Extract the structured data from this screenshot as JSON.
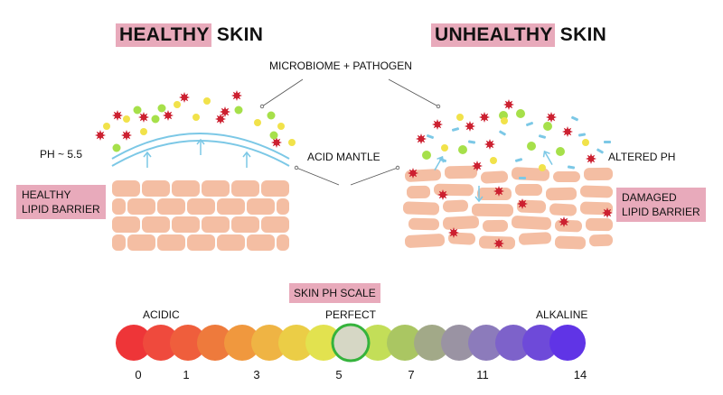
{
  "titles": {
    "healthy_highlight": "HEALTHY",
    "healthy_rest": " SKIN",
    "unhealthy_highlight": "UNHEALTHY",
    "unhealthy_rest": " SKIN"
  },
  "labels": {
    "microbiome": "MICROBIOME + PATHOGEN",
    "ph_left": "PH ~ 5.5",
    "acid_mantle": "ACID MANTLE",
    "altered_ph": "ALTERED PH",
    "healthy_lipid_line1": "HEALTHY",
    "healthy_lipid_line2": "LIPID BARRIER",
    "damaged_lipid_line1": "DAMAGED",
    "damaged_lipid_line2": "LIPID BARRIER"
  },
  "ph_scale": {
    "title": "SKIN PH SCALE",
    "acidic": "ACIDIC",
    "perfect": "PERFECT",
    "alkaline": "ALKALINE",
    "numbers": [
      "0",
      "1",
      "3",
      "5",
      "7",
      "11",
      "14"
    ],
    "colors": [
      "#ee3538",
      "#ef4a3d",
      "#ef5e3c",
      "#ee7a3c",
      "#f0983e",
      "#efb444",
      "#ebcd46",
      "#e2e24f",
      "#d6d7c5",
      "#c3de58",
      "#aac662",
      "#a2a988",
      "#9a93a3",
      "#8c7bbb",
      "#7d62ca",
      "#6e4ad9",
      "#6034e6"
    ],
    "perfect_ring_color": "#35b33c"
  }
}
